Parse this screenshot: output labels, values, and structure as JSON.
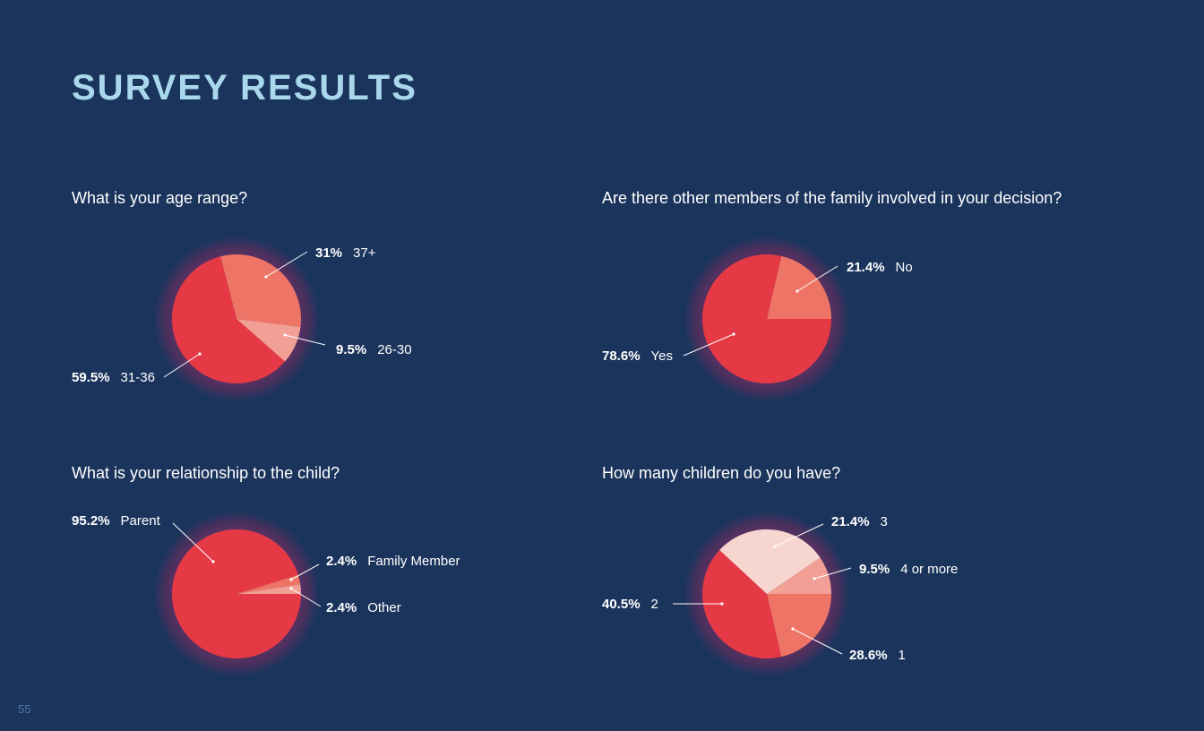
{
  "page": {
    "title": "SURVEY RESULTS",
    "page_number": "55"
  },
  "colors": {
    "background": "#1b345c",
    "title": "#a9d8ec",
    "slice_primary": "#e63946",
    "slice_secondary": "#ee7566",
    "slice_tertiary": "#f29f95",
    "slice_quaternary": "#f8d6d0",
    "halo": "#5a3260"
  },
  "chart_data": [
    {
      "type": "pie",
      "title": "What is your age range?",
      "slices": [
        {
          "label": "37+",
          "pct_text": "31%",
          "value": 31.0,
          "color": "#ee7566"
        },
        {
          "label": "26-30",
          "pct_text": "9.5%",
          "value": 9.5,
          "color": "#f29f95"
        },
        {
          "label": "31-36",
          "pct_text": "59.5%",
          "value": 59.5,
          "color": "#e63946"
        }
      ]
    },
    {
      "type": "pie",
      "title": "Are there other members of the family involved in your decision?",
      "slices": [
        {
          "label": "No",
          "pct_text": "21.4%",
          "value": 21.4,
          "color": "#ee7566"
        },
        {
          "label": "Yes",
          "pct_text": "78.6%",
          "value": 78.6,
          "color": "#e63946"
        }
      ]
    },
    {
      "type": "pie",
      "title": "What is your relationship to the child?",
      "slices": [
        {
          "label": "Family Member",
          "pct_text": "2.4%",
          "value": 2.4,
          "color": "#ee7566"
        },
        {
          "label": "Other",
          "pct_text": "2.4%",
          "value": 2.4,
          "color": "#f29f95"
        },
        {
          "label": "Parent",
          "pct_text": "95.2%",
          "value": 95.2,
          "color": "#e63946"
        }
      ]
    },
    {
      "type": "pie",
      "title": "How many children do you have?",
      "slices": [
        {
          "label": "4 or more",
          "pct_text": "9.5%",
          "value": 9.5,
          "color": "#f29f95"
        },
        {
          "label": "3",
          "pct_text": "21.4%",
          "value": 21.4,
          "color": "#ee7566"
        },
        {
          "label": "2",
          "pct_text": "40.5%",
          "value": 40.5,
          "color": "#e63946"
        },
        {
          "label": "1",
          "pct_text": "28.6%",
          "value": 28.6,
          "color": "#f8d6d0"
        }
      ]
    }
  ]
}
